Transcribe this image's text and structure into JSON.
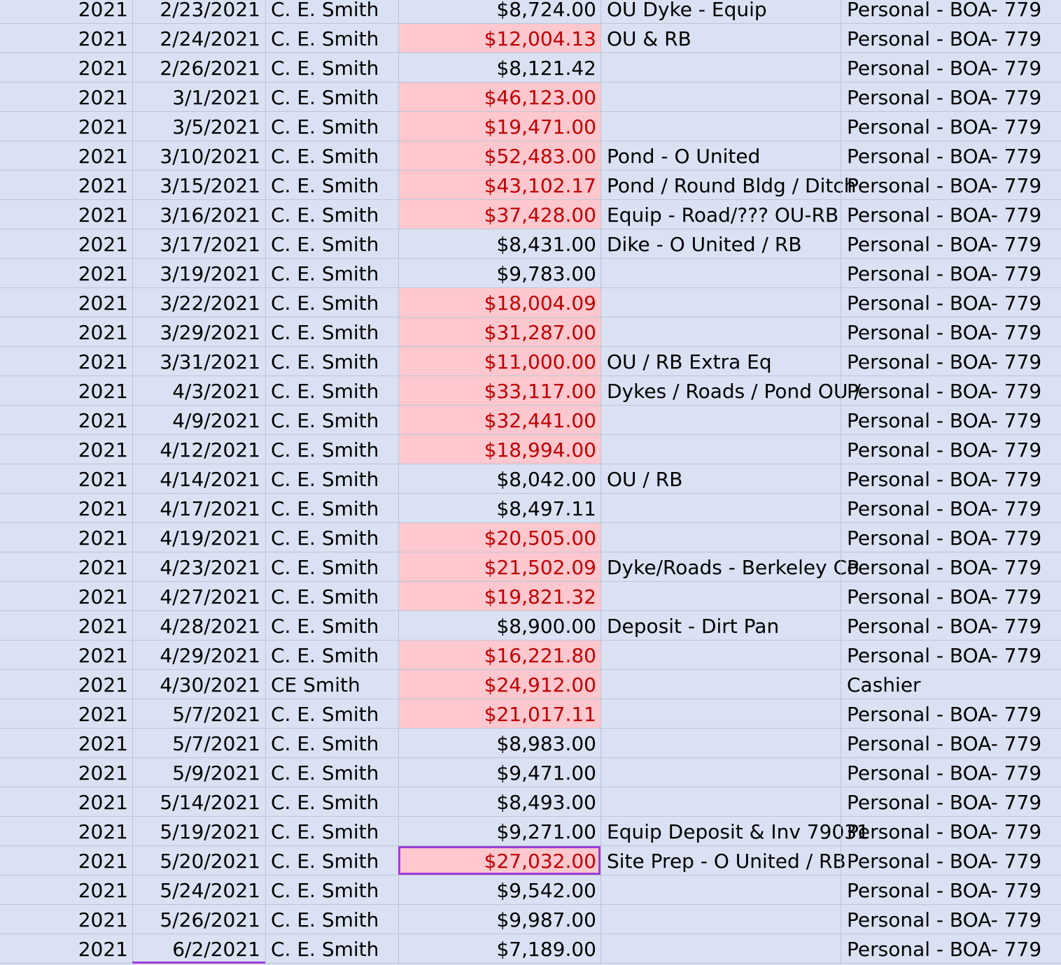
{
  "sheet": {
    "rows": [
      {
        "year": "2021",
        "date": "2/23/2021",
        "name": "C. E. Smith",
        "amount": "$8,724.00",
        "memo": "OU Dyke - Equip",
        "account": "Personal - BOA- 779",
        "highlight": false
      },
      {
        "year": "2021",
        "date": "2/24/2021",
        "name": "C. E. Smith",
        "amount": "$12,004.13",
        "memo": "OU & RB",
        "account": "Personal - BOA- 779",
        "highlight": true
      },
      {
        "year": "2021",
        "date": "2/26/2021",
        "name": "C. E. Smith",
        "amount": "$8,121.42",
        "memo": "",
        "account": "Personal - BOA- 779",
        "highlight": false
      },
      {
        "year": "2021",
        "date": "3/1/2021",
        "name": "C. E. Smith",
        "amount": "$46,123.00",
        "memo": "",
        "account": "Personal - BOA- 779",
        "highlight": true
      },
      {
        "year": "2021",
        "date": "3/5/2021",
        "name": "C. E. Smith",
        "amount": "$19,471.00",
        "memo": "",
        "account": "Personal - BOA- 779",
        "highlight": true
      },
      {
        "year": "2021",
        "date": "3/10/2021",
        "name": "C. E. Smith",
        "amount": "$52,483.00",
        "memo": "Pond - O United",
        "account": "Personal - BOA- 779",
        "highlight": true
      },
      {
        "year": "2021",
        "date": "3/15/2021",
        "name": "C. E. Smith",
        "amount": "$43,102.17",
        "memo": "Pond / Round Bldg / Ditch",
        "account": "Personal - BOA- 779",
        "highlight": true
      },
      {
        "year": "2021",
        "date": "3/16/2021",
        "name": "C. E. Smith",
        "amount": "$37,428.00",
        "memo": "Equip - Road/??? OU-RB",
        "account": "Personal - BOA- 779",
        "highlight": true
      },
      {
        "year": "2021",
        "date": "3/17/2021",
        "name": "C. E. Smith",
        "amount": "$8,431.00",
        "memo": "Dike - O United / RB",
        "account": "Personal - BOA- 779",
        "highlight": false
      },
      {
        "year": "2021",
        "date": "3/19/2021",
        "name": "C. E. Smith",
        "amount": "$9,783.00",
        "memo": "",
        "account": "Personal - BOA- 779",
        "highlight": false
      },
      {
        "year": "2021",
        "date": "3/22/2021",
        "name": "C. E. Smith",
        "amount": "$18,004.09",
        "memo": "",
        "account": "Personal - BOA- 779",
        "highlight": true
      },
      {
        "year": "2021",
        "date": "3/29/2021",
        "name": "C. E. Smith",
        "amount": "$31,287.00",
        "memo": "",
        "account": "Personal - BOA- 779",
        "highlight": true
      },
      {
        "year": "2021",
        "date": "3/31/2021",
        "name": "C. E. Smith",
        "amount": "$11,000.00",
        "memo": "OU / RB Extra Eq",
        "account": "Personal - BOA- 779",
        "highlight": true
      },
      {
        "year": "2021",
        "date": "4/3/2021",
        "name": "C. E. Smith",
        "amount": "$33,117.00",
        "memo": "Dykes / Roads / Pond OU /",
        "account": "Personal - BOA- 779",
        "highlight": true
      },
      {
        "year": "2021",
        "date": "4/9/2021",
        "name": "C. E. Smith",
        "amount": "$32,441.00",
        "memo": "",
        "account": "Personal - BOA- 779",
        "highlight": true
      },
      {
        "year": "2021",
        "date": "4/12/2021",
        "name": "C. E. Smith",
        "amount": "$18,994.00",
        "memo": "",
        "account": "Personal - BOA- 779",
        "highlight": true
      },
      {
        "year": "2021",
        "date": "4/14/2021",
        "name": "C. E. Smith",
        "amount": "$8,042.00",
        "memo": "OU / RB",
        "account": "Personal - BOA- 779",
        "highlight": false
      },
      {
        "year": "2021",
        "date": "4/17/2021",
        "name": "C. E. Smith",
        "amount": "$8,497.11",
        "memo": "",
        "account": "Personal - BOA- 779",
        "highlight": false
      },
      {
        "year": "2021",
        "date": "4/19/2021",
        "name": "C. E. Smith",
        "amount": "$20,505.00",
        "memo": "",
        "account": "Personal - BOA- 779",
        "highlight": true
      },
      {
        "year": "2021",
        "date": "4/23/2021",
        "name": "C. E. Smith",
        "amount": "$21,502.09",
        "memo": "Dyke/Roads - Berkeley Co",
        "account": "Personal - BOA- 779",
        "highlight": true
      },
      {
        "year": "2021",
        "date": "4/27/2021",
        "name": "C. E. Smith",
        "amount": "$19,821.32",
        "memo": "",
        "account": "Personal - BOA- 779",
        "highlight": true
      },
      {
        "year": "2021",
        "date": "4/28/2021",
        "name": "C. E. Smith",
        "amount": "$8,900.00",
        "memo": "Deposit - Dirt Pan",
        "account": "Personal - BOA- 779",
        "highlight": false
      },
      {
        "year": "2021",
        "date": "4/29/2021",
        "name": "C. E. Smith",
        "amount": "$16,221.80",
        "memo": "",
        "account": "Personal - BOA- 779",
        "highlight": true
      },
      {
        "year": "2021",
        "date": "4/30/2021",
        "name": "CE Smith",
        "amount": "$24,912.00",
        "memo": "",
        "account": "Cashier",
        "highlight": true
      },
      {
        "year": "2021",
        "date": "5/7/2021",
        "name": "C. E. Smith",
        "amount": "$21,017.11",
        "memo": "",
        "account": "Personal - BOA- 779",
        "highlight": true
      },
      {
        "year": "2021",
        "date": "5/7/2021",
        "name": "C. E. Smith",
        "amount": "$8,983.00",
        "memo": "",
        "account": "Personal - BOA- 779",
        "highlight": false
      },
      {
        "year": "2021",
        "date": "5/9/2021",
        "name": "C. E. Smith",
        "amount": "$9,471.00",
        "memo": "",
        "account": "Personal - BOA- 779",
        "highlight": false
      },
      {
        "year": "2021",
        "date": "5/14/2021",
        "name": "C. E. Smith",
        "amount": "$8,493.00",
        "memo": "",
        "account": "Personal - BOA- 779",
        "highlight": false
      },
      {
        "year": "2021",
        "date": "5/19/2021",
        "name": "C. E. Smith",
        "amount": "$9,271.00",
        "memo": "Equip Deposit & Inv 79031",
        "account": "Personal - BOA- 779",
        "highlight": false
      },
      {
        "year": "2021",
        "date": "5/20/2021",
        "name": "C. E. Smith",
        "amount": "$27,032.00",
        "memo": "Site Prep - O United / RB",
        "account": "Personal - BOA- 779",
        "highlight": true,
        "selected": true
      },
      {
        "year": "2021",
        "date": "5/24/2021",
        "name": "C. E. Smith",
        "amount": "$9,542.00",
        "memo": "",
        "account": "Personal - BOA- 779",
        "highlight": false
      },
      {
        "year": "2021",
        "date": "5/26/2021",
        "name": "C. E. Smith",
        "amount": "$9,987.00",
        "memo": "",
        "account": "Personal - BOA- 779",
        "highlight": false
      },
      {
        "year": "2021",
        "date": "6/2/2021",
        "name": "C. E. Smith",
        "amount": "$7,189.00",
        "memo": "",
        "account": "Personal - BOA- 779",
        "highlight": false
      }
    ]
  },
  "colors": {
    "row_background": "#d9e1f2",
    "highlight_fill": "#ffc7ce",
    "highlight_text": "#c00000",
    "selection_border": "#9b3fd6",
    "gridline": "#bcc6d9"
  }
}
